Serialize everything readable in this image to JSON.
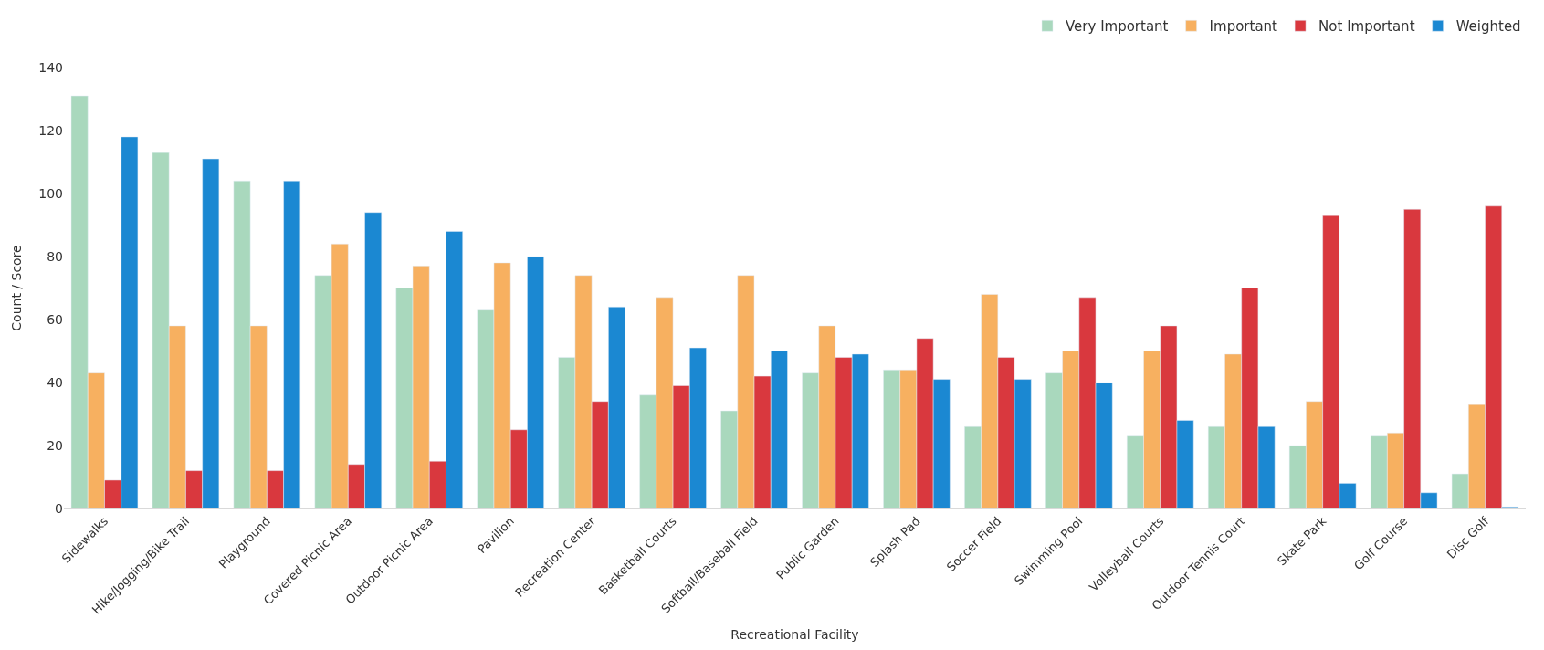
{
  "chart_data": {
    "type": "bar",
    "xlabel": "Recreational Facility",
    "ylabel": "Count / Score",
    "categories": [
      "Sidewalks",
      "Hike/Jogging/Bike Trail",
      "Playground",
      "Covered Picnic Area",
      "Outdoor Picnic Area",
      "Pavilion",
      "Recreation Center",
      "Basketball Courts",
      "Softball/Baseball Field",
      "Public Garden",
      "Splash Pad",
      "Soccer Field",
      "Swimming Pool",
      "Volleyball Courts",
      "Outdoor Tennis Court",
      "Skate Park",
      "Golf Course",
      "Disc Golf"
    ],
    "series": [
      {
        "name": "Very Important",
        "color": "#a9d8bd",
        "values": [
          131,
          113,
          104,
          74,
          70,
          63,
          48,
          36,
          31,
          43,
          44,
          26,
          43,
          23,
          26,
          20,
          23,
          11
        ]
      },
      {
        "name": "Important",
        "color": "#f7b060",
        "values": [
          43,
          58,
          58,
          84,
          77,
          78,
          74,
          67,
          74,
          58,
          44,
          68,
          50,
          50,
          49,
          34,
          24,
          33
        ]
      },
      {
        "name": "Not Important",
        "color": "#d9383e",
        "values": [
          9,
          12,
          12,
          14,
          15,
          25,
          34,
          39,
          42,
          48,
          54,
          48,
          67,
          58,
          70,
          93,
          95,
          96
        ]
      },
      {
        "name": "Weighted",
        "color": "#1b88d2",
        "values": [
          118,
          111,
          104,
          94,
          88,
          80,
          64,
          51,
          50,
          49,
          41,
          41,
          40,
          28,
          26,
          8,
          5,
          0.5
        ]
      }
    ],
    "ylim": [
      0,
      140
    ],
    "yticks": [
      0,
      20,
      40,
      60,
      80,
      100,
      120,
      140
    ],
    "grid": "y",
    "legend": "top right"
  }
}
